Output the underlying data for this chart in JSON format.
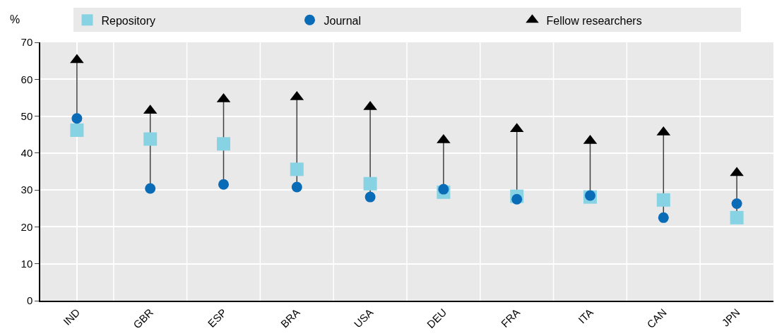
{
  "chart_data": {
    "type": "scatter",
    "ylabel": "%",
    "categories": [
      "IND",
      "GBR",
      "ESP",
      "BRA",
      "USA",
      "DEU",
      "FRA",
      "ITA",
      "CAN",
      "JPN"
    ],
    "series": [
      {
        "name": "Repository",
        "color": "#87d3e3",
        "marker": "square",
        "values": [
          46.2,
          43.8,
          42.5,
          35.6,
          31.7,
          29.4,
          28.3,
          28.1,
          27.3,
          22.5
        ]
      },
      {
        "name": "Journal",
        "color": "#0a6bb7",
        "marker": "circle",
        "values": [
          49.4,
          30.4,
          31.5,
          30.8,
          28.1,
          30.2,
          27.5,
          28.5,
          22.5,
          26.3
        ]
      },
      {
        "name": "Fellow researchers",
        "color": "#000000",
        "marker": "triangle",
        "values": [
          65.2,
          51.5,
          54.6,
          55.2,
          52.5,
          43.5,
          46.5,
          43.3,
          45.6,
          34.6
        ]
      }
    ],
    "ylim": [
      0,
      70
    ],
    "yticks": [
      0,
      10,
      20,
      30,
      40,
      50,
      60,
      70
    ],
    "grid": true,
    "legend": "top"
  }
}
